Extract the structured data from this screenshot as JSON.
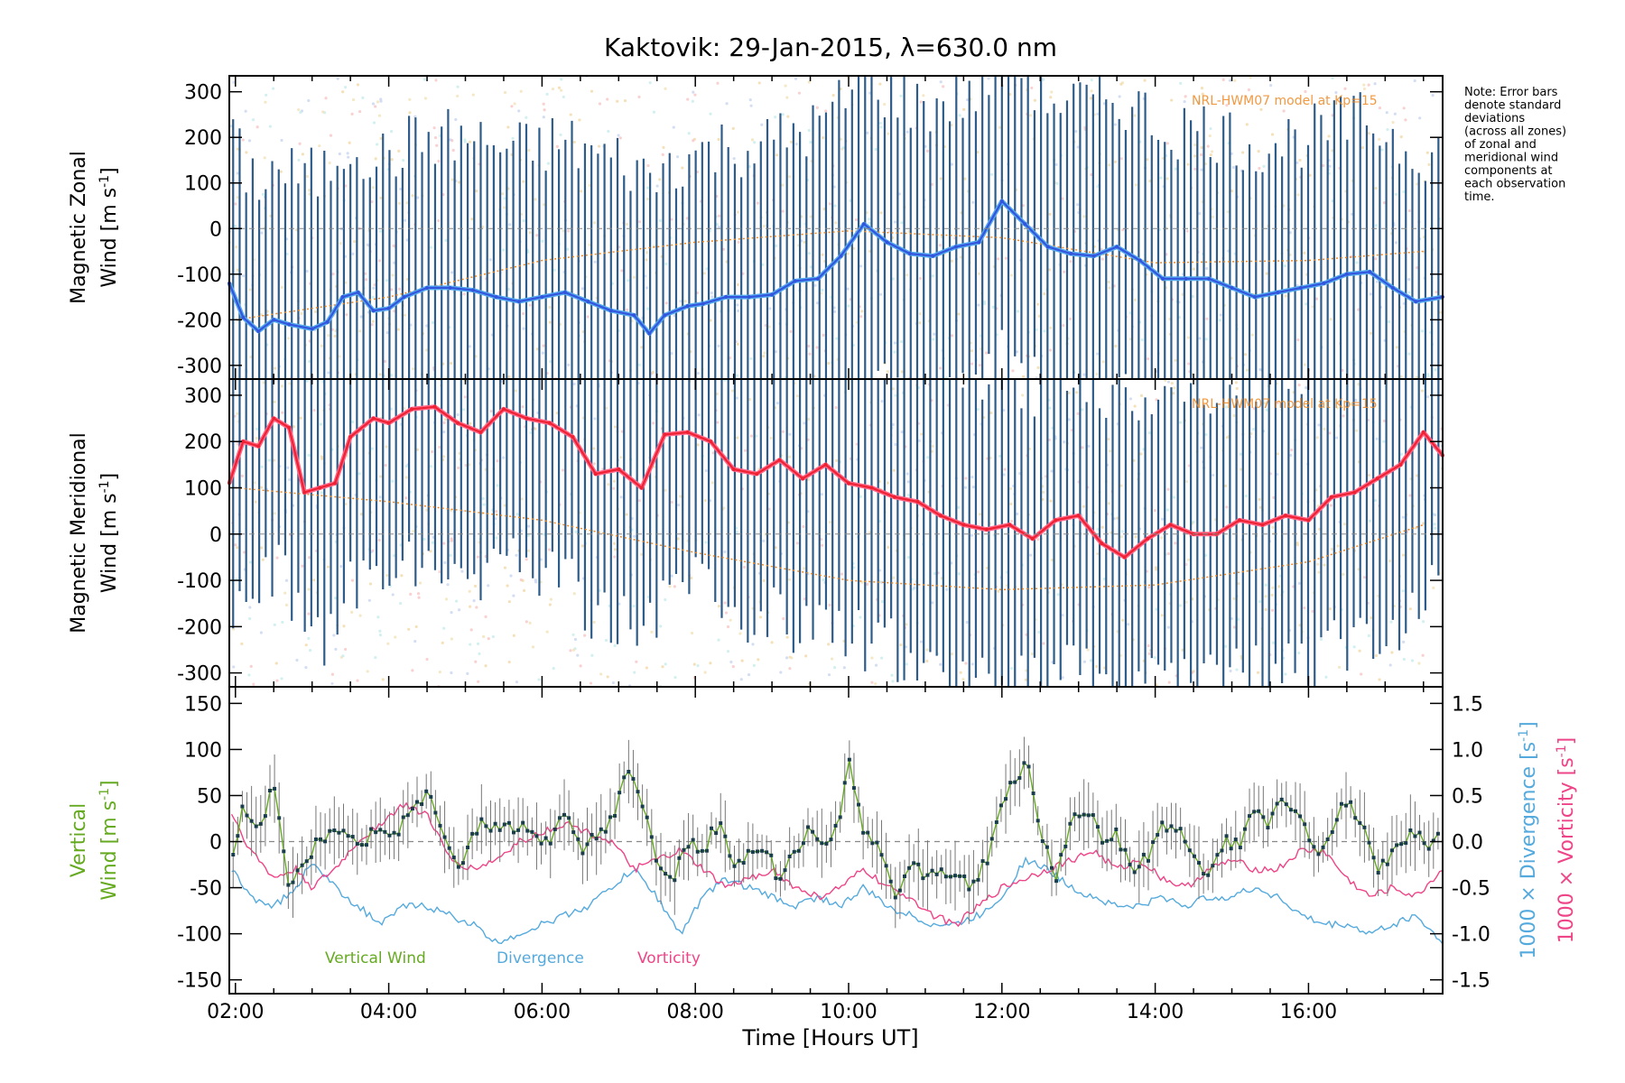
{
  "title": "Kaktovik: 29-Jan-2015, λ=630.0 nm",
  "note": [
    "Note: Error bars",
    "denote standard",
    "deviations",
    "(across all zones)",
    "of zonal and",
    "meridional wind",
    "components at",
    "each observation",
    "time."
  ],
  "xaxis": {
    "label": "Time [Hours UT]",
    "ticks": [
      2,
      4,
      6,
      8,
      10,
      12,
      14,
      16
    ],
    "tick_labels": [
      "02:00",
      "04:00",
      "06:00",
      "08:00",
      "10:00",
      "12:00",
      "14:00",
      "16:00"
    ],
    "range": [
      1.92,
      17.75
    ]
  },
  "colors": {
    "zonal": "#3355dd",
    "zonal_light": "#55aaee",
    "meridional": "#ee2233",
    "meridional_light": "#ff6688",
    "vertical": "#66aa22",
    "divergence": "#55aadd",
    "vorticity": "#ee4488",
    "errorbar": "#2e5c8a",
    "model": "#ee8822",
    "points": "#1a3d4d"
  },
  "chart_data": [
    {
      "type": "line",
      "panel": "zonal",
      "ylabel_line1": "Magnetic Zonal",
      "ylabel_line2": "Wind [m s",
      "ylabel_sup": "-1",
      "ylabel_close": "]",
      "ylim": [
        -330,
        335
      ],
      "yticks": [
        -300,
        -200,
        -100,
        0,
        100,
        200,
        300
      ],
      "annotation": "NRL-HWM07 model at Kp=15",
      "series": [
        {
          "x": [
            1.92,
            2.1,
            2.3,
            2.5,
            2.7,
            3.0,
            3.2,
            3.4,
            3.6,
            3.8,
            4.0,
            4.2,
            4.5,
            4.8,
            5.1,
            5.4,
            5.7,
            6.0,
            6.3,
            6.6,
            6.9,
            7.2,
            7.4,
            7.6,
            7.9,
            8.1,
            8.4,
            8.7,
            9.0,
            9.3,
            9.6,
            9.9,
            10.2,
            10.5,
            10.8,
            11.1,
            11.4,
            11.7,
            12.0,
            12.3,
            12.6,
            12.9,
            13.2,
            13.5,
            13.8,
            14.1,
            14.4,
            14.7,
            15.0,
            15.3,
            15.6,
            15.9,
            16.2,
            16.5,
            16.8,
            17.1,
            17.4,
            17.75
          ],
          "y": [
            -120,
            -195,
            -225,
            -200,
            -210,
            -220,
            -205,
            -150,
            -140,
            -180,
            -175,
            -150,
            -130,
            -130,
            -135,
            -150,
            -160,
            -150,
            -140,
            -160,
            -180,
            -190,
            -230,
            -190,
            -170,
            -165,
            -150,
            -150,
            -145,
            -115,
            -110,
            -60,
            10,
            -30,
            -55,
            -60,
            -40,
            -30,
            60,
            10,
            -40,
            -55,
            -60,
            -40,
            -70,
            -110,
            -110,
            -110,
            -130,
            -150,
            -140,
            -130,
            -120,
            -100,
            -95,
            -130,
            -160,
            -150
          ]
        }
      ],
      "model_line": {
        "x": [
          2.0,
          4.0,
          6.0,
          8.0,
          10.0,
          12.0,
          14.0,
          16.0,
          17.5
        ],
        "y": [
          -200,
          -150,
          -70,
          -30,
          -5,
          -20,
          -75,
          -70,
          -50
        ]
      }
    },
    {
      "type": "line",
      "panel": "meridional",
      "ylabel_line1": "Magnetic Meridional",
      "ylabel_line2": "Wind [m s",
      "ylabel_sup": "-1",
      "ylabel_close": "]",
      "ylim": [
        -330,
        335
      ],
      "yticks": [
        -300,
        -200,
        -100,
        0,
        100,
        200,
        300
      ],
      "annotation": "NRL-HWM07 model at Kp=15",
      "series": [
        {
          "x": [
            1.92,
            2.1,
            2.3,
            2.5,
            2.7,
            2.9,
            3.1,
            3.3,
            3.5,
            3.8,
            4.0,
            4.3,
            4.6,
            4.9,
            5.2,
            5.5,
            5.8,
            6.1,
            6.4,
            6.7,
            7.0,
            7.3,
            7.6,
            7.9,
            8.2,
            8.5,
            8.8,
            9.1,
            9.4,
            9.7,
            10.0,
            10.3,
            10.6,
            10.9,
            11.2,
            11.5,
            11.8,
            12.1,
            12.4,
            12.7,
            13.0,
            13.3,
            13.6,
            13.9,
            14.2,
            14.5,
            14.8,
            15.1,
            15.4,
            15.7,
            16.0,
            16.3,
            16.6,
            16.9,
            17.2,
            17.5,
            17.75
          ],
          "y": [
            110,
            200,
            190,
            250,
            230,
            90,
            100,
            110,
            210,
            250,
            240,
            270,
            275,
            240,
            220,
            270,
            250,
            240,
            210,
            130,
            140,
            100,
            215,
            220,
            200,
            140,
            130,
            160,
            120,
            150,
            110,
            100,
            80,
            70,
            40,
            20,
            10,
            20,
            -10,
            30,
            40,
            -20,
            -50,
            -10,
            20,
            0,
            0,
            30,
            20,
            40,
            30,
            80,
            90,
            120,
            150,
            220,
            170
          ]
        }
      ],
      "model_line": {
        "x": [
          2.0,
          4.0,
          6.0,
          8.0,
          10.0,
          12.0,
          14.0,
          16.0,
          17.5
        ],
        "y": [
          100,
          70,
          30,
          -40,
          -100,
          -120,
          -110,
          -60,
          20
        ]
      }
    },
    {
      "type": "line",
      "panel": "vertical",
      "ylabel_line1": "Vertical",
      "ylabel_line2": "Wind [m s",
      "ylabel_sup": "-1",
      "ylabel_close": "]",
      "ylim": [
        -165,
        168
      ],
      "yticks": [
        -150,
        -100,
        -50,
        0,
        50,
        100,
        150
      ],
      "right_axis": {
        "ylim": [
          -1.65,
          1.68
        ],
        "yticks": [
          -1.5,
          -1.0,
          -0.5,
          0.0,
          0.5,
          1.0,
          1.5
        ],
        "tick_labels": [
          "-1.5",
          "-1.0",
          "-0.5",
          "0.0",
          "0.5",
          "1.0",
          "1.5"
        ],
        "label1": "1000 × Divergence [s",
        "label2": "1000 × Vorticity [s",
        "sup": "-1",
        "close": "]"
      },
      "legend": [
        "Vertical Wind",
        "Divergence",
        "Vorticity"
      ],
      "series": [
        {
          "name": "Vertical Wind",
          "axis": "left",
          "x": [
            1.95,
            2.1,
            2.3,
            2.5,
            2.7,
            2.9,
            3.1,
            3.3,
            3.5,
            3.7,
            3.9,
            4.1,
            4.3,
            4.5,
            4.7,
            4.9,
            5.1,
            5.3,
            5.5,
            5.7,
            5.9,
            6.1,
            6.3,
            6.5,
            6.7,
            6.9,
            7.1,
            7.3,
            7.5,
            7.7,
            7.9,
            8.1,
            8.3,
            8.5,
            8.7,
            8.9,
            9.1,
            9.3,
            9.5,
            9.7,
            9.9,
            10.0,
            10.2,
            10.4,
            10.6,
            10.8,
            11.0,
            11.2,
            11.4,
            11.6,
            11.8,
            12.0,
            12.2,
            12.3,
            12.5,
            12.7,
            12.9,
            13.1,
            13.3,
            13.5,
            13.7,
            13.9,
            14.1,
            14.3,
            14.5,
            14.7,
            14.9,
            15.1,
            15.3,
            15.5,
            15.7,
            15.9,
            16.1,
            16.3,
            16.5,
            16.7,
            16.9,
            17.1,
            17.3,
            17.5
          ],
          "y": [
            -20,
            40,
            10,
            60,
            -60,
            -20,
            0,
            20,
            10,
            0,
            20,
            10,
            40,
            50,
            20,
            -30,
            10,
            20,
            10,
            20,
            0,
            0,
            30,
            -10,
            10,
            20,
            70,
            50,
            -30,
            -40,
            0,
            -10,
            20,
            -30,
            -10,
            0,
            -50,
            -10,
            20,
            0,
            20,
            90,
            10,
            -10,
            -60,
            -20,
            -40,
            -30,
            -40,
            -50,
            -20,
            40,
            70,
            95,
            10,
            -40,
            20,
            40,
            0,
            10,
            -30,
            -20,
            20,
            10,
            -10,
            -40,
            0,
            0,
            30,
            20,
            50,
            20,
            -10,
            10,
            50,
            20,
            -30,
            -10,
            10,
            0
          ]
        },
        {
          "name": "Divergence",
          "axis": "right",
          "x": [
            1.95,
            2.2,
            2.5,
            2.8,
            3.0,
            3.3,
            3.6,
            3.9,
            4.2,
            4.5,
            4.8,
            5.1,
            5.4,
            5.7,
            6.0,
            6.3,
            6.6,
            6.9,
            7.2,
            7.5,
            7.8,
            8.1,
            8.4,
            8.7,
            9.0,
            9.3,
            9.6,
            9.9,
            10.2,
            10.5,
            10.8,
            11.1,
            11.4,
            11.7,
            12.0,
            12.3,
            12.6,
            12.9,
            13.2,
            13.5,
            13.8,
            14.1,
            14.4,
            14.7,
            15.0,
            15.3,
            15.6,
            15.9,
            16.2,
            16.5,
            16.8,
            17.1,
            17.4,
            17.75
          ],
          "y": [
            -0.3,
            -0.6,
            -0.7,
            -0.5,
            -0.2,
            -0.5,
            -0.7,
            -0.9,
            -0.7,
            -0.7,
            -0.8,
            -0.9,
            -1.1,
            -1.0,
            -0.9,
            -0.8,
            -0.7,
            -0.5,
            -0.3,
            -0.6,
            -1.0,
            -0.6,
            -0.4,
            -0.5,
            -0.6,
            -0.7,
            -0.6,
            -0.7,
            -0.5,
            -0.7,
            -0.8,
            -0.9,
            -0.9,
            -0.8,
            -0.6,
            -0.2,
            -0.3,
            -0.5,
            -0.6,
            -0.7,
            -0.7,
            -0.6,
            -0.7,
            -0.6,
            -0.6,
            -0.5,
            -0.6,
            -0.8,
            -0.9,
            -0.9,
            -1.0,
            -0.9,
            -0.8,
            -1.1
          ]
        },
        {
          "name": "Vorticity",
          "axis": "right",
          "x": [
            1.95,
            2.2,
            2.5,
            2.8,
            3.0,
            3.3,
            3.6,
            3.9,
            4.2,
            4.5,
            4.8,
            5.1,
            5.4,
            5.7,
            6.0,
            6.3,
            6.6,
            6.9,
            7.2,
            7.5,
            7.8,
            8.1,
            8.4,
            8.7,
            9.0,
            9.3,
            9.6,
            9.9,
            10.2,
            10.5,
            10.8,
            11.1,
            11.4,
            11.7,
            12.0,
            12.3,
            12.6,
            12.9,
            13.2,
            13.5,
            13.8,
            14.1,
            14.4,
            14.7,
            15.0,
            15.3,
            15.6,
            15.9,
            16.2,
            16.5,
            16.8,
            17.1,
            17.4,
            17.75
          ],
          "y": [
            0.3,
            -0.1,
            -0.4,
            -0.3,
            -0.5,
            -0.3,
            0.0,
            0.2,
            0.4,
            0.3,
            -0.2,
            -0.3,
            -0.2,
            0.0,
            0.1,
            0.2,
            0.1,
            0.0,
            -0.3,
            -0.2,
            -0.1,
            -0.3,
            -0.5,
            -0.4,
            -0.3,
            -0.5,
            -0.6,
            -0.5,
            -0.3,
            -0.5,
            -0.6,
            -0.8,
            -0.9,
            -0.7,
            -0.5,
            -0.4,
            -0.3,
            -0.2,
            -0.1,
            -0.3,
            -0.2,
            -0.4,
            -0.5,
            -0.3,
            -0.2,
            -0.3,
            -0.3,
            -0.1,
            -0.1,
            -0.4,
            -0.6,
            -0.5,
            -0.6,
            -0.3
          ]
        }
      ]
    }
  ]
}
